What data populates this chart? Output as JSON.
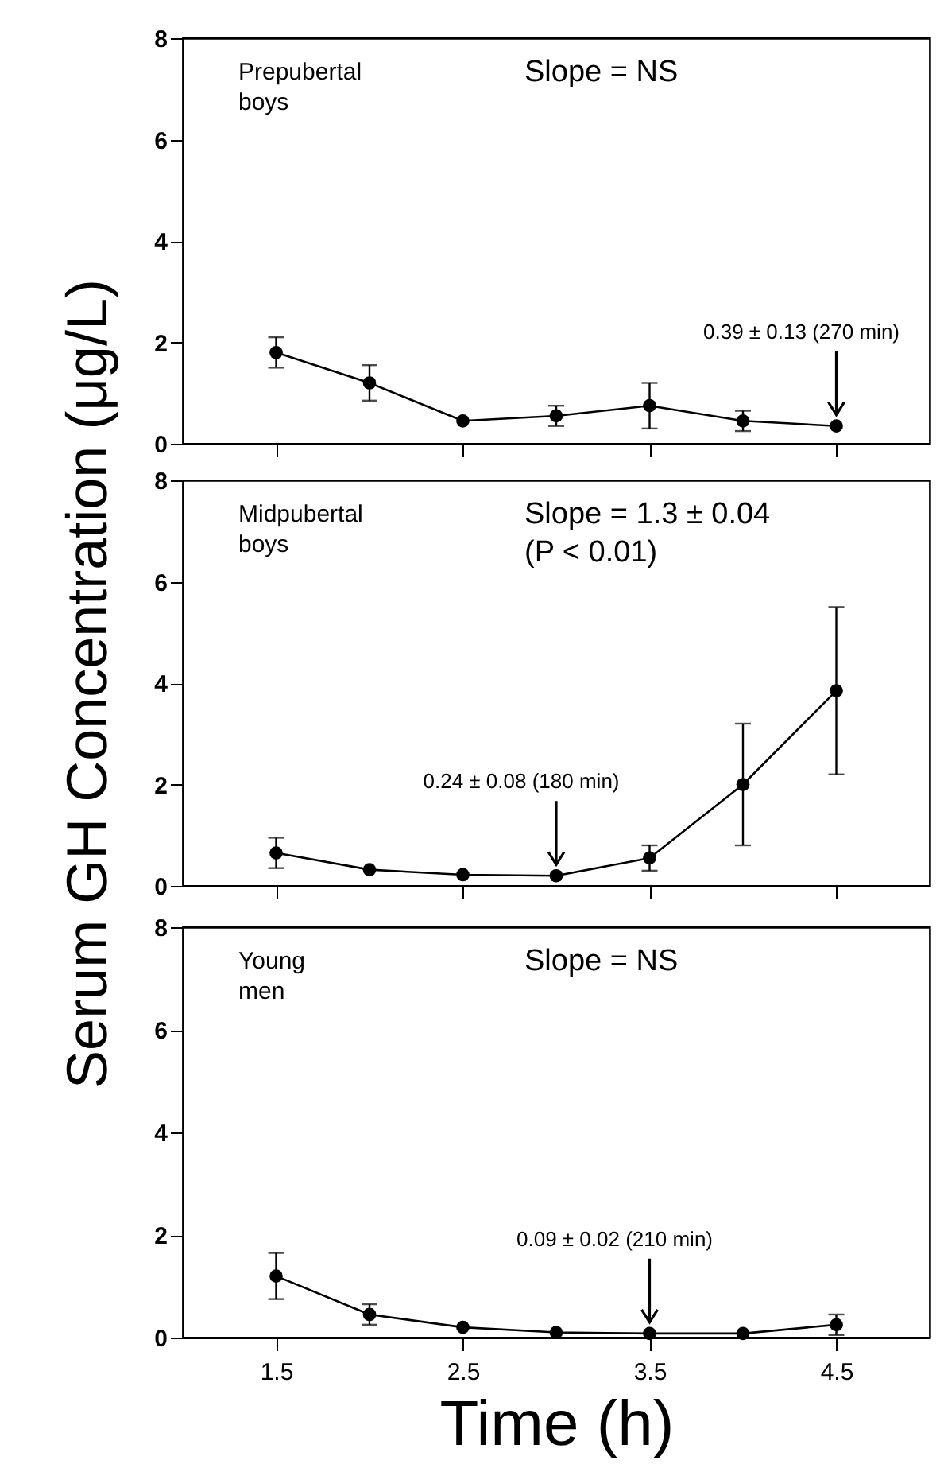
{
  "chart_data": [
    {
      "type": "line",
      "x": [
        1.5,
        2,
        2.5,
        3,
        3.5,
        4,
        4.5
      ],
      "xlim": [
        1,
        5
      ],
      "xticks": [
        1.5,
        2.5,
        3.5,
        4.5
      ],
      "ylim": [
        0,
        8
      ],
      "yticks": [
        0,
        2,
        4,
        6,
        8
      ],
      "tick_labels": "y",
      "marker": "circle",
      "series": [
        {
          "color": "#000000",
          "values": [
            1.8,
            1.2,
            0.45,
            0.55,
            0.75,
            0.45,
            0.35
          ],
          "errors": [
            0.3,
            0.35,
            null,
            0.2,
            0.45,
            0.2,
            null
          ]
        }
      ],
      "annotations": [
        "Prepubertal\nboys",
        "Slope = NS",
        {
          "text": "0.39 ± 0.13 (270 min)",
          "x": 4.5,
          "y": 0.35
        }
      ]
    },
    {
      "type": "line",
      "x": [
        1.5,
        2,
        2.5,
        3,
        3.5,
        4,
        4.5
      ],
      "xlim": [
        1,
        5
      ],
      "xticks": [
        1.5,
        2.5,
        3.5,
        4.5
      ],
      "ylim": [
        0,
        8
      ],
      "yticks": [
        0,
        2,
        4,
        6,
        8
      ],
      "tick_labels": "y",
      "marker": "circle",
      "ylabel": "Serum GH Concentration (μg/L)",
      "series": [
        {
          "color": "#000000",
          "values": [
            0.65,
            0.32,
            0.22,
            0.2,
            0.55,
            2.0,
            3.85
          ],
          "errors": [
            0.3,
            null,
            null,
            null,
            0.25,
            1.2,
            [
              2.2,
              5.5
            ]
          ]
        }
      ],
      "annotations": [
        "Midpubertal\nboys",
        "Slope = 1.3 ± 0.04\n(P < 0.01)",
        {
          "text": "0.24 ± 0.08 (180 min)",
          "x": 3,
          "y": 0.2
        }
      ]
    },
    {
      "type": "line",
      "x": [
        1.5,
        2,
        2.5,
        3,
        3.5,
        4,
        4.5
      ],
      "xlim": [
        1,
        5
      ],
      "xticks": [
        1.5,
        2.5,
        3.5,
        4.5
      ],
      "ylim": [
        0,
        8
      ],
      "yticks": [
        0,
        2,
        4,
        6,
        8
      ],
      "marker": "circle",
      "xlabel": "Time (h)",
      "series": [
        {
          "color": "#000000",
          "values": [
            1.2,
            0.45,
            0.2,
            0.1,
            0.08,
            0.08,
            0.25
          ],
          "errors": [
            0.45,
            0.2,
            null,
            null,
            null,
            null,
            0.2
          ]
        }
      ],
      "annotations": [
        "Young\nmen",
        "Slope = NS",
        {
          "text": "0.09 ± 0.02 (210 min)",
          "x": 3.5,
          "y": 0.08
        }
      ]
    }
  ]
}
